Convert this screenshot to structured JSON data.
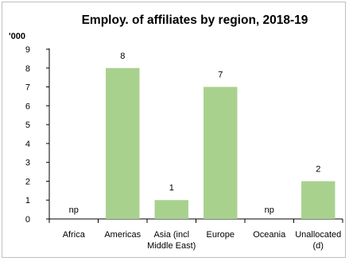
{
  "chart_data": {
    "type": "bar",
    "title": "Employ. of affiliates by region, 2018-19",
    "unit_label": "'000",
    "xlabel": "",
    "ylabel": "",
    "ylim": [
      0,
      9
    ],
    "yticks": [
      0,
      1,
      2,
      3,
      4,
      5,
      6,
      7,
      8,
      9
    ],
    "grid": false,
    "legend": "none",
    "bar_color": "#a9d18e",
    "categories": [
      [
        "Africa"
      ],
      [
        "Americas"
      ],
      [
        "Asia (incl",
        "Middle East)"
      ],
      [
        "Europe"
      ],
      [
        "Oceania"
      ],
      [
        "Unallocated",
        "(d)"
      ]
    ],
    "values": [
      null,
      8,
      1,
      7,
      null,
      2
    ],
    "data_labels": [
      "np",
      "8",
      "1",
      "7",
      "np",
      "2"
    ]
  }
}
